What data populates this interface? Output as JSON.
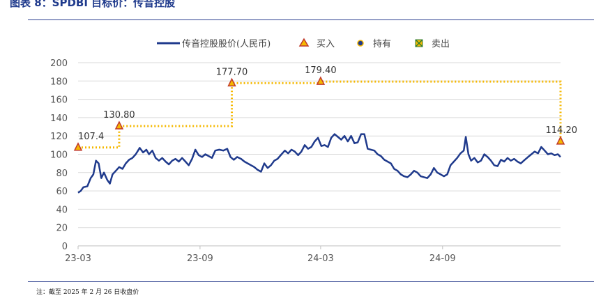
{
  "header": {
    "title": "图表 8：SPDBI 目标价：传音控股"
  },
  "footnote": "注：截至 2025 年 2 月 26 日收盘价",
  "colors": {
    "price_line": "#1f3a8c",
    "target_line": "#f5b800",
    "buy_marker": "#f5b800",
    "buy_edge": "#c0392b",
    "hold_marker": "#1f3a8c",
    "sell_marker": "#f5b800",
    "sell_edge": "#2e7d32",
    "grid": "#d9d9d9"
  },
  "legend": [
    {
      "label": "传音控股股价(人民币)",
      "icon": "line"
    },
    {
      "label": "买入",
      "icon": "triangle"
    },
    {
      "label": "持有",
      "icon": "circle"
    },
    {
      "label": "卖出",
      "icon": "square-x"
    }
  ],
  "chart_data": {
    "type": "line",
    "ylim": [
      0,
      200
    ],
    "yticks": [
      0,
      20,
      40,
      60,
      80,
      100,
      120,
      140,
      160,
      180,
      200
    ],
    "x_range": [
      "2023-03-01",
      "2025-02-26"
    ],
    "xticks": [
      "23-03",
      "23-09",
      "24-03",
      "24-09"
    ],
    "xtick_dates": [
      "2023-03-01",
      "2023-09-01",
      "2024-03-01",
      "2024-09-01"
    ],
    "legend_position": "top",
    "grid": true,
    "series": [
      {
        "name": "传音控股股价(人民币)",
        "points": [
          [
            "2023-03-01",
            58
          ],
          [
            "2023-03-05",
            60
          ],
          [
            "2023-03-09",
            64
          ],
          [
            "2023-03-15",
            65
          ],
          [
            "2023-03-20",
            74
          ],
          [
            "2023-03-24",
            78
          ],
          [
            "2023-03-28",
            93
          ],
          [
            "2023-04-01",
            90
          ],
          [
            "2023-04-05",
            74
          ],
          [
            "2023-04-09",
            80
          ],
          [
            "2023-04-14",
            72
          ],
          [
            "2023-04-18",
            68
          ],
          [
            "2023-04-22",
            78
          ],
          [
            "2023-04-27",
            82
          ],
          [
            "2023-05-02",
            86
          ],
          [
            "2023-05-07",
            84
          ],
          [
            "2023-05-12",
            90
          ],
          [
            "2023-05-17",
            94
          ],
          [
            "2023-05-22",
            96
          ],
          [
            "2023-05-27",
            100
          ],
          [
            "2023-06-02",
            107
          ],
          [
            "2023-06-07",
            102
          ],
          [
            "2023-06-12",
            105
          ],
          [
            "2023-06-16",
            100
          ],
          [
            "2023-06-21",
            104
          ],
          [
            "2023-06-26",
            96
          ],
          [
            "2023-07-01",
            93
          ],
          [
            "2023-07-06",
            96
          ],
          [
            "2023-07-11",
            92
          ],
          [
            "2023-07-16",
            89
          ],
          [
            "2023-07-21",
            93
          ],
          [
            "2023-07-26",
            95
          ],
          [
            "2023-07-31",
            92
          ],
          [
            "2023-08-05",
            96
          ],
          [
            "2023-08-10",
            92
          ],
          [
            "2023-08-15",
            88
          ],
          [
            "2023-08-20",
            95
          ],
          [
            "2023-08-25",
            105
          ],
          [
            "2023-08-30",
            99
          ],
          [
            "2023-09-04",
            97
          ],
          [
            "2023-09-09",
            100
          ],
          [
            "2023-09-14",
            98
          ],
          [
            "2023-09-19",
            96
          ],
          [
            "2023-09-24",
            104
          ],
          [
            "2023-09-30",
            105
          ],
          [
            "2023-10-06",
            104
          ],
          [
            "2023-10-12",
            106
          ],
          [
            "2023-10-17",
            97
          ],
          [
            "2023-10-22",
            94
          ],
          [
            "2023-10-27",
            97
          ],
          [
            "2023-11-02",
            95
          ],
          [
            "2023-11-07",
            92
          ],
          [
            "2023-11-12",
            90
          ],
          [
            "2023-11-17",
            88
          ],
          [
            "2023-11-22",
            86
          ],
          [
            "2023-11-27",
            83
          ],
          [
            "2023-12-02",
            81
          ],
          [
            "2023-12-07",
            90
          ],
          [
            "2023-12-12",
            85
          ],
          [
            "2023-12-17",
            88
          ],
          [
            "2023-12-22",
            93
          ],
          [
            "2023-12-27",
            95
          ],
          [
            "2024-01-02",
            100
          ],
          [
            "2024-01-07",
            104
          ],
          [
            "2024-01-12",
            101
          ],
          [
            "2024-01-17",
            105
          ],
          [
            "2024-01-22",
            103
          ],
          [
            "2024-01-27",
            99
          ],
          [
            "2024-02-01",
            103
          ],
          [
            "2024-02-06",
            110
          ],
          [
            "2024-02-11",
            106
          ],
          [
            "2024-02-16",
            108
          ],
          [
            "2024-02-21",
            114
          ],
          [
            "2024-02-26",
            118
          ],
          [
            "2024-03-02",
            109
          ],
          [
            "2024-03-07",
            110
          ],
          [
            "2024-03-12",
            108
          ],
          [
            "2024-03-17",
            118
          ],
          [
            "2024-03-22",
            122
          ],
          [
            "2024-03-27",
            119
          ],
          [
            "2024-04-01",
            116
          ],
          [
            "2024-04-06",
            120
          ],
          [
            "2024-04-11",
            114
          ],
          [
            "2024-04-16",
            120
          ],
          [
            "2024-04-21",
            112
          ],
          [
            "2024-04-26",
            113
          ],
          [
            "2024-05-01",
            122
          ],
          [
            "2024-05-06",
            122
          ],
          [
            "2024-05-11",
            106
          ],
          [
            "2024-05-16",
            105
          ],
          [
            "2024-05-21",
            104
          ],
          [
            "2024-05-26",
            100
          ],
          [
            "2024-05-31",
            98
          ],
          [
            "2024-06-05",
            94
          ],
          [
            "2024-06-10",
            92
          ],
          [
            "2024-06-15",
            90
          ],
          [
            "2024-06-20",
            84
          ],
          [
            "2024-06-25",
            82
          ],
          [
            "2024-06-30",
            78
          ],
          [
            "2024-07-05",
            76
          ],
          [
            "2024-07-10",
            75
          ],
          [
            "2024-07-15",
            78
          ],
          [
            "2024-07-20",
            82
          ],
          [
            "2024-07-25",
            80
          ],
          [
            "2024-07-30",
            76
          ],
          [
            "2024-08-04",
            75
          ],
          [
            "2024-08-09",
            74
          ],
          [
            "2024-08-14",
            78
          ],
          [
            "2024-08-19",
            85
          ],
          [
            "2024-08-24",
            80
          ],
          [
            "2024-08-29",
            78
          ],
          [
            "2024-09-03",
            76
          ],
          [
            "2024-09-08",
            78
          ],
          [
            "2024-09-13",
            88
          ],
          [
            "2024-09-18",
            92
          ],
          [
            "2024-09-23",
            96
          ],
          [
            "2024-09-28",
            101
          ],
          [
            "2024-10-03",
            104
          ],
          [
            "2024-10-06",
            119
          ],
          [
            "2024-10-10",
            100
          ],
          [
            "2024-10-14",
            93
          ],
          [
            "2024-10-19",
            96
          ],
          [
            "2024-10-24",
            91
          ],
          [
            "2024-10-29",
            93
          ],
          [
            "2024-11-03",
            100
          ],
          [
            "2024-11-08",
            97
          ],
          [
            "2024-11-13",
            93
          ],
          [
            "2024-11-18",
            88
          ],
          [
            "2024-11-23",
            87
          ],
          [
            "2024-11-28",
            94
          ],
          [
            "2024-12-03",
            92
          ],
          [
            "2024-12-08",
            96
          ],
          [
            "2024-12-13",
            93
          ],
          [
            "2024-12-18",
            95
          ],
          [
            "2024-12-23",
            92
          ],
          [
            "2024-12-28",
            90
          ],
          [
            "2025-01-03",
            94
          ],
          [
            "2025-01-08",
            97
          ],
          [
            "2025-01-13",
            100
          ],
          [
            "2025-01-18",
            103
          ],
          [
            "2025-01-23",
            101
          ],
          [
            "2025-01-28",
            108
          ],
          [
            "2025-02-02",
            104
          ],
          [
            "2025-02-07",
            100
          ],
          [
            "2025-02-12",
            101
          ],
          [
            "2025-02-17",
            99
          ],
          [
            "2025-02-22",
            100
          ],
          [
            "2025-02-26",
            97
          ]
        ]
      }
    ],
    "target_prices": [
      {
        "date": "2023-03-01",
        "value": 107.4,
        "label": "107.4",
        "rating": "买入"
      },
      {
        "date": "2023-05-02",
        "value": 130.8,
        "label": "130.80",
        "rating": "买入"
      },
      {
        "date": "2023-10-19",
        "value": 177.7,
        "label": "177.70",
        "rating": "买入"
      },
      {
        "date": "2024-03-01",
        "value": 179.4,
        "label": "179.40",
        "rating": "买入"
      },
      {
        "date": "2025-02-26",
        "value": 114.2,
        "label": "114.20",
        "rating": "买入"
      }
    ]
  }
}
